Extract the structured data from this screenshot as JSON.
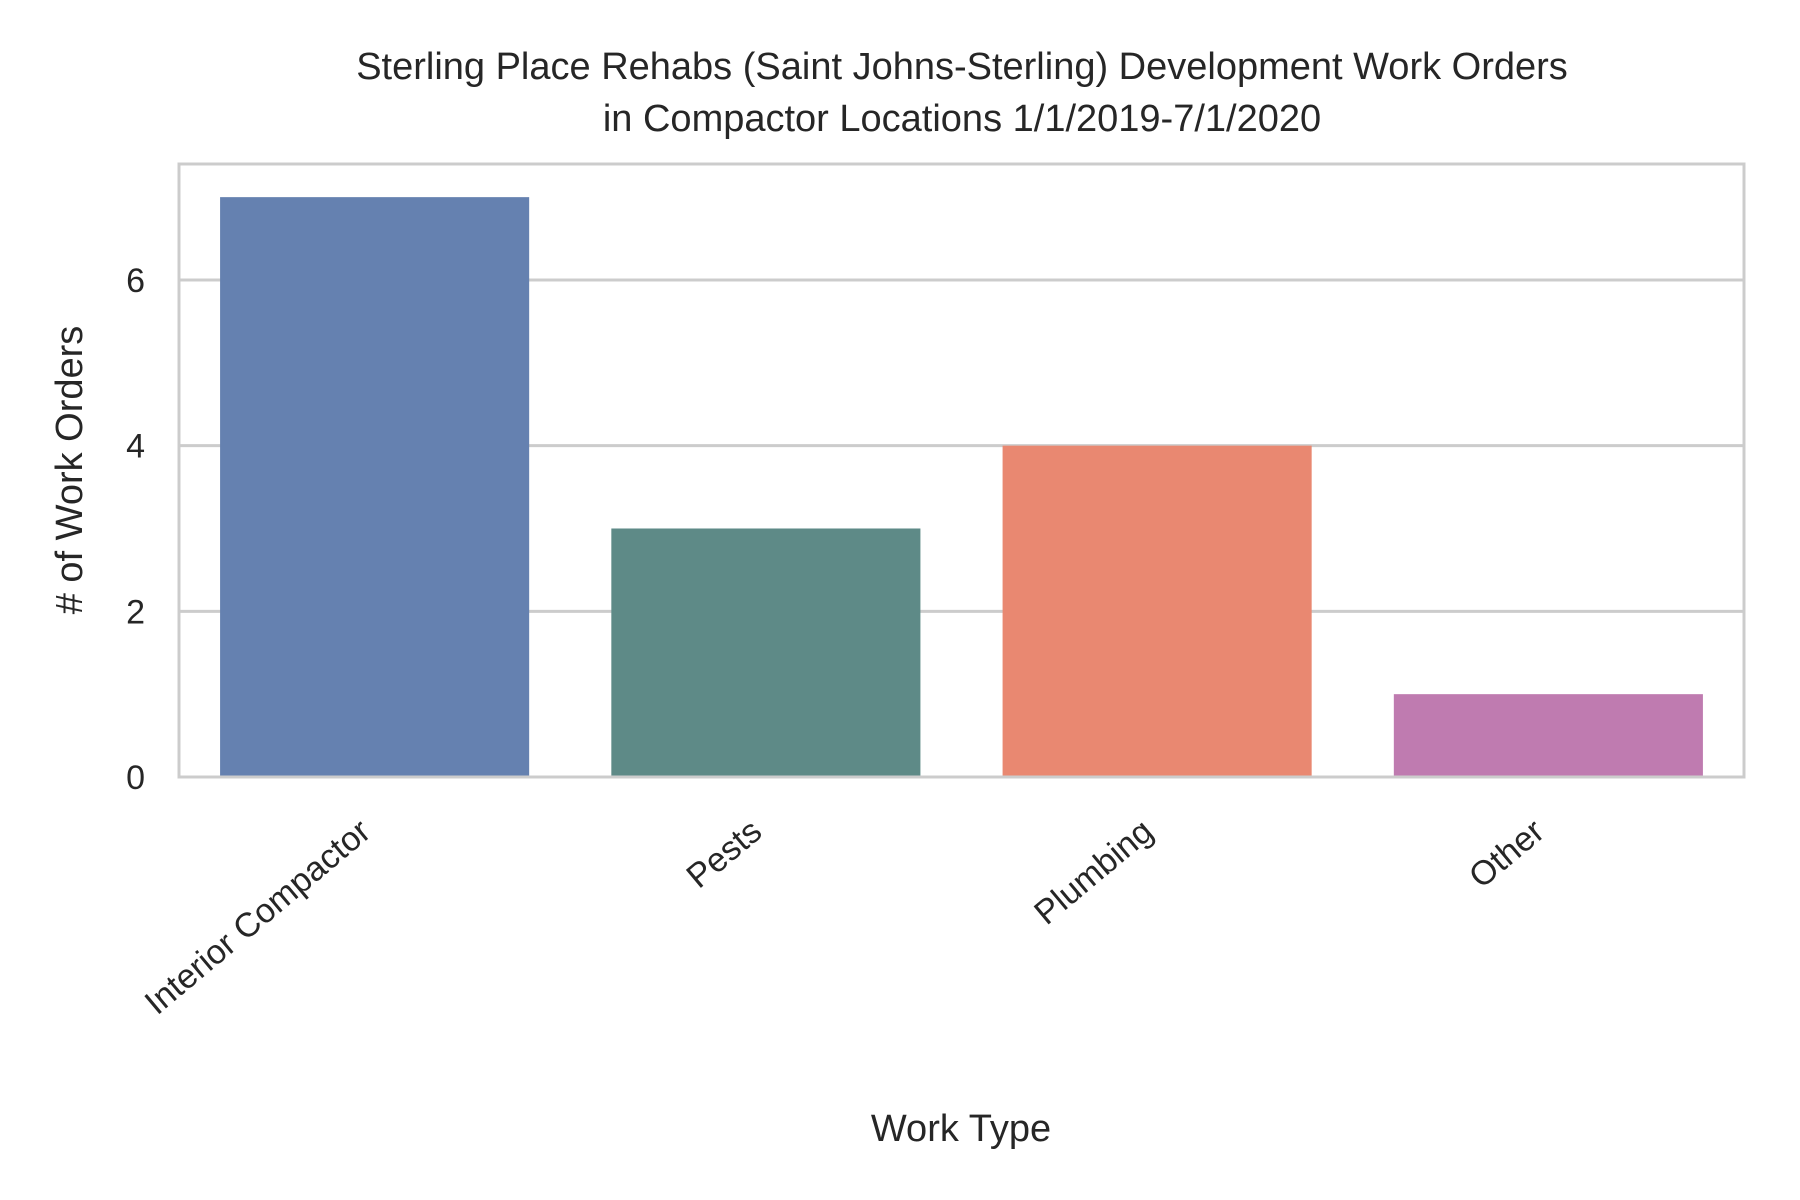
{
  "chart_data": {
    "type": "bar",
    "title": [
      "Sterling Place Rehabs (Saint Johns-Sterling) Development Work Orders",
      "in Compactor Locations 1/1/2019-7/1/2020"
    ],
    "xlabel": "Work Type",
    "ylabel": "# of Work Orders",
    "categories": [
      "Interior Compactor",
      "Pests",
      "Plumbing",
      "Other"
    ],
    "values": [
      7,
      3,
      4,
      1
    ],
    "colors": [
      "#6581b0",
      "#5e8a87",
      "#e98871",
      "#bf7bb0"
    ],
    "ylim": [
      0,
      7.4
    ],
    "yticks": [
      0,
      2,
      4,
      6
    ],
    "grid": true,
    "legend": "none"
  }
}
